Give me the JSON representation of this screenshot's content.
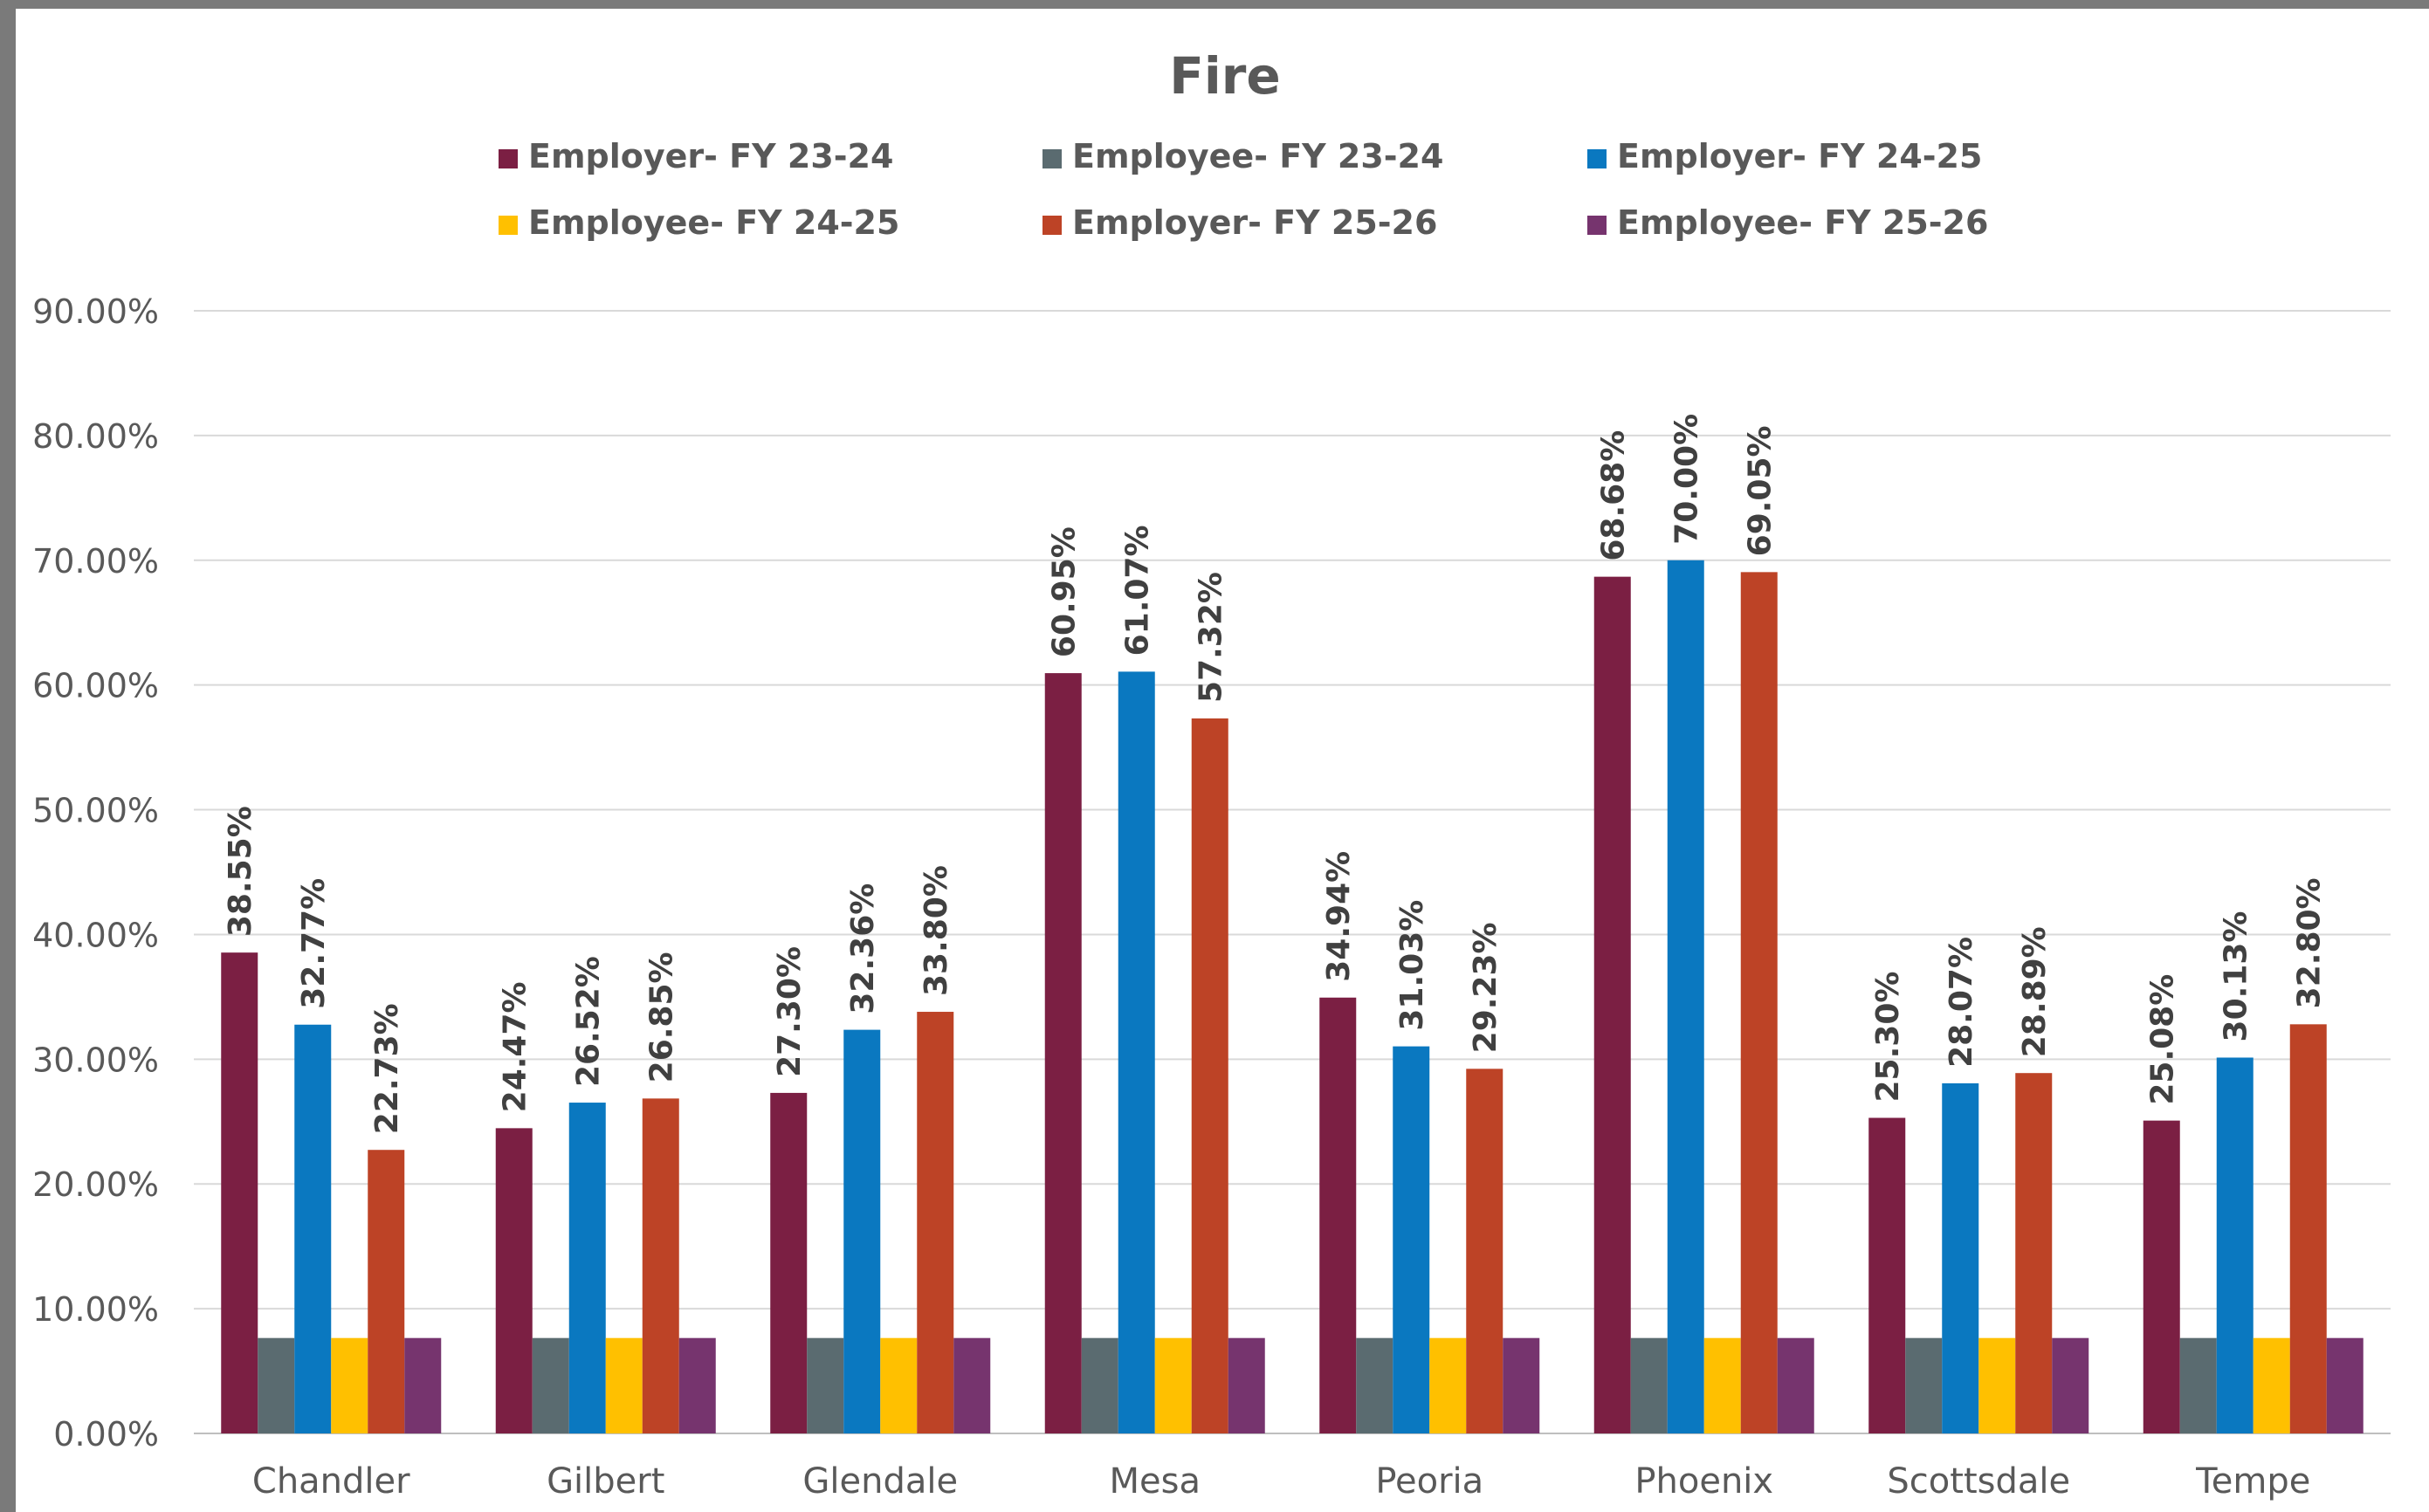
{
  "chart_data": {
    "type": "bar",
    "title": "Fire",
    "xlabel": "",
    "ylabel": "",
    "ylim": [
      0,
      90
    ],
    "yticks": [
      "0.00%",
      "10.00%",
      "20.00%",
      "30.00%",
      "40.00%",
      "50.00%",
      "60.00%",
      "70.00%",
      "80.00%",
      "90.00%"
    ],
    "grid": true,
    "legend_position": "top",
    "categories": [
      "Chandler",
      "Gilbert",
      "Glendale",
      "Mesa",
      "Peoria",
      "Phoenix",
      "Scottsdale",
      "Tempe"
    ],
    "series": [
      {
        "name": "Employer- FY 23-24",
        "color": "#7b1f43",
        "values": [
          38.55,
          24.47,
          27.3,
          60.95,
          34.94,
          68.68,
          25.3,
          25.08
        ],
        "labels": [
          "38.55%",
          "24.47%",
          "27.30%",
          "60.95%",
          "34.94%",
          "68.68%",
          "25.30%",
          "25.08%"
        ]
      },
      {
        "name": "Employee- FY 23-24",
        "color": "#5a6b70",
        "values": [
          7.65,
          7.65,
          7.65,
          7.65,
          7.65,
          7.65,
          7.65,
          7.65
        ]
      },
      {
        "name": "Employer- FY 24-25",
        "color": "#0a78c0",
        "values": [
          32.77,
          26.52,
          32.36,
          61.07,
          31.03,
          70.0,
          28.07,
          30.13
        ],
        "labels": [
          "32.77%",
          "26.52%",
          "32.36%",
          "61.07%",
          "31.03%",
          "70.00%",
          "28.07%",
          "30.13%"
        ]
      },
      {
        "name": "Employee- FY 24-25",
        "color": "#ffc000",
        "values": [
          7.65,
          7.65,
          7.65,
          7.65,
          7.65,
          7.65,
          7.65,
          7.65
        ]
      },
      {
        "name": "Employer- FY 25-26",
        "color": "#bd4326",
        "values": [
          22.73,
          26.85,
          33.8,
          57.32,
          29.23,
          69.05,
          28.89,
          32.8
        ],
        "labels": [
          "22.73%",
          "26.85%",
          "33.80%",
          "57.32%",
          "29.23%",
          "69.05%",
          "28.89%",
          "32.80%"
        ]
      },
      {
        "name": "Employee- FY 25-26",
        "color": "#76346e",
        "values": [
          7.65,
          7.65,
          7.65,
          7.65,
          7.65,
          7.65,
          7.65,
          7.65
        ]
      }
    ]
  }
}
